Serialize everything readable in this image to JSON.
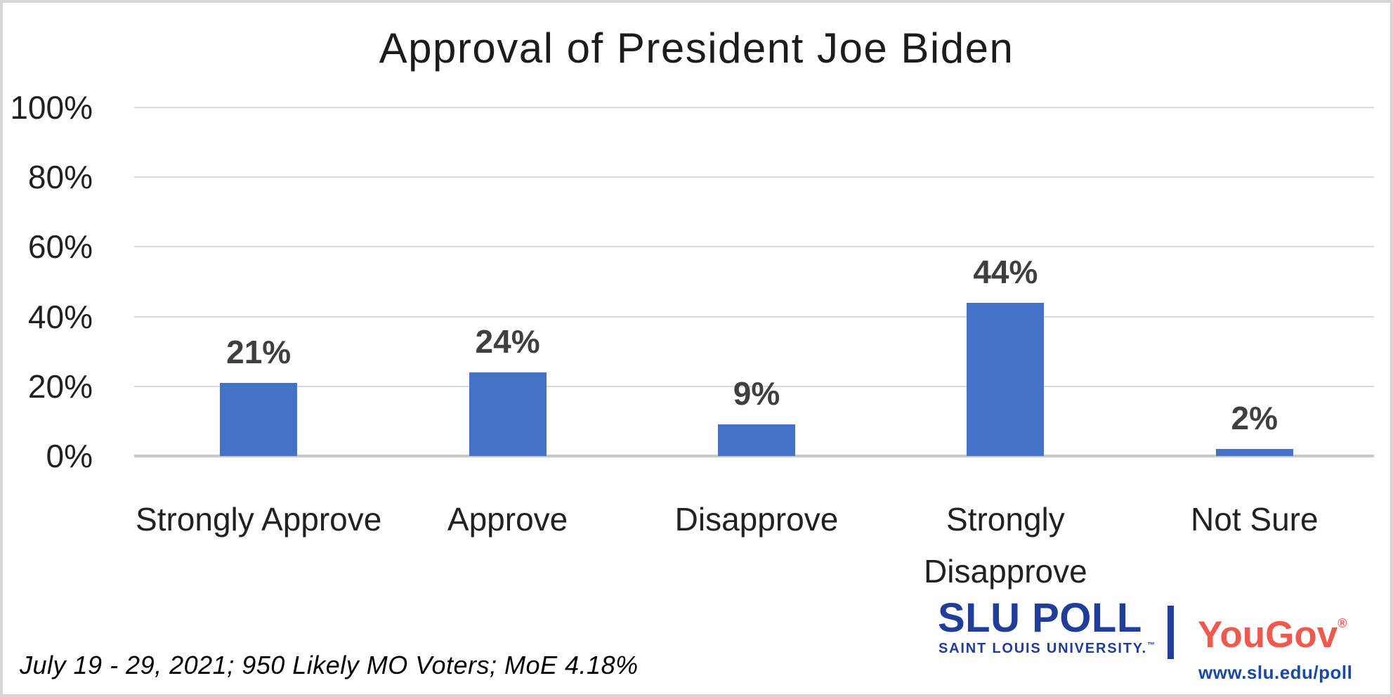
{
  "page": {
    "background_color": "#ffffff",
    "border_color": "#d6d6d6"
  },
  "chart_data": {
    "type": "bar",
    "title": "Approval of President Joe Biden",
    "categories": [
      "Strongly Approve",
      "Approve",
      "Disapprove",
      "Strongly Disapprove",
      "Not Sure"
    ],
    "category_lines": [
      [
        "Strongly Approve"
      ],
      [
        "Approve"
      ],
      [
        "Disapprove"
      ],
      [
        "Strongly",
        "Disapprove"
      ],
      [
        "Not Sure"
      ]
    ],
    "values": [
      21,
      24,
      9,
      44,
      2
    ],
    "data_labels": [
      "21%",
      "24%",
      "9%",
      "44%",
      "2%"
    ],
    "xlabel": "",
    "ylabel": "",
    "ylim": [
      0,
      100
    ],
    "ytick_values": [
      0,
      20,
      40,
      60,
      80,
      100
    ],
    "ytick_labels": [
      "0%",
      "20%",
      "40%",
      "60%",
      "80%",
      "100%"
    ],
    "grid": true,
    "legend_position": "none",
    "bar_color": "#4472c6",
    "gridline_color": "#d9d9d9",
    "axis_line_color": "#c9c9c9",
    "data_label_color": "#3f3f3f",
    "axis_text_color": "#212121"
  },
  "footer": {
    "note": "July 19 - 29, 2021; 950 Likely MO Voters; MoE 4.18%"
  },
  "branding": {
    "slu_wordmark": "SLU POLL",
    "slu_tagline": "SAINT LOUIS UNIVERSITY.",
    "slu_trademark": "™",
    "yougov_wordmark": "YouGov",
    "yougov_registered": "®",
    "website": "www.slu.edu/poll",
    "slu_blue": "#1f3d99",
    "yougov_red": "#ee5a4e",
    "website_blue": "#1a49a3"
  }
}
